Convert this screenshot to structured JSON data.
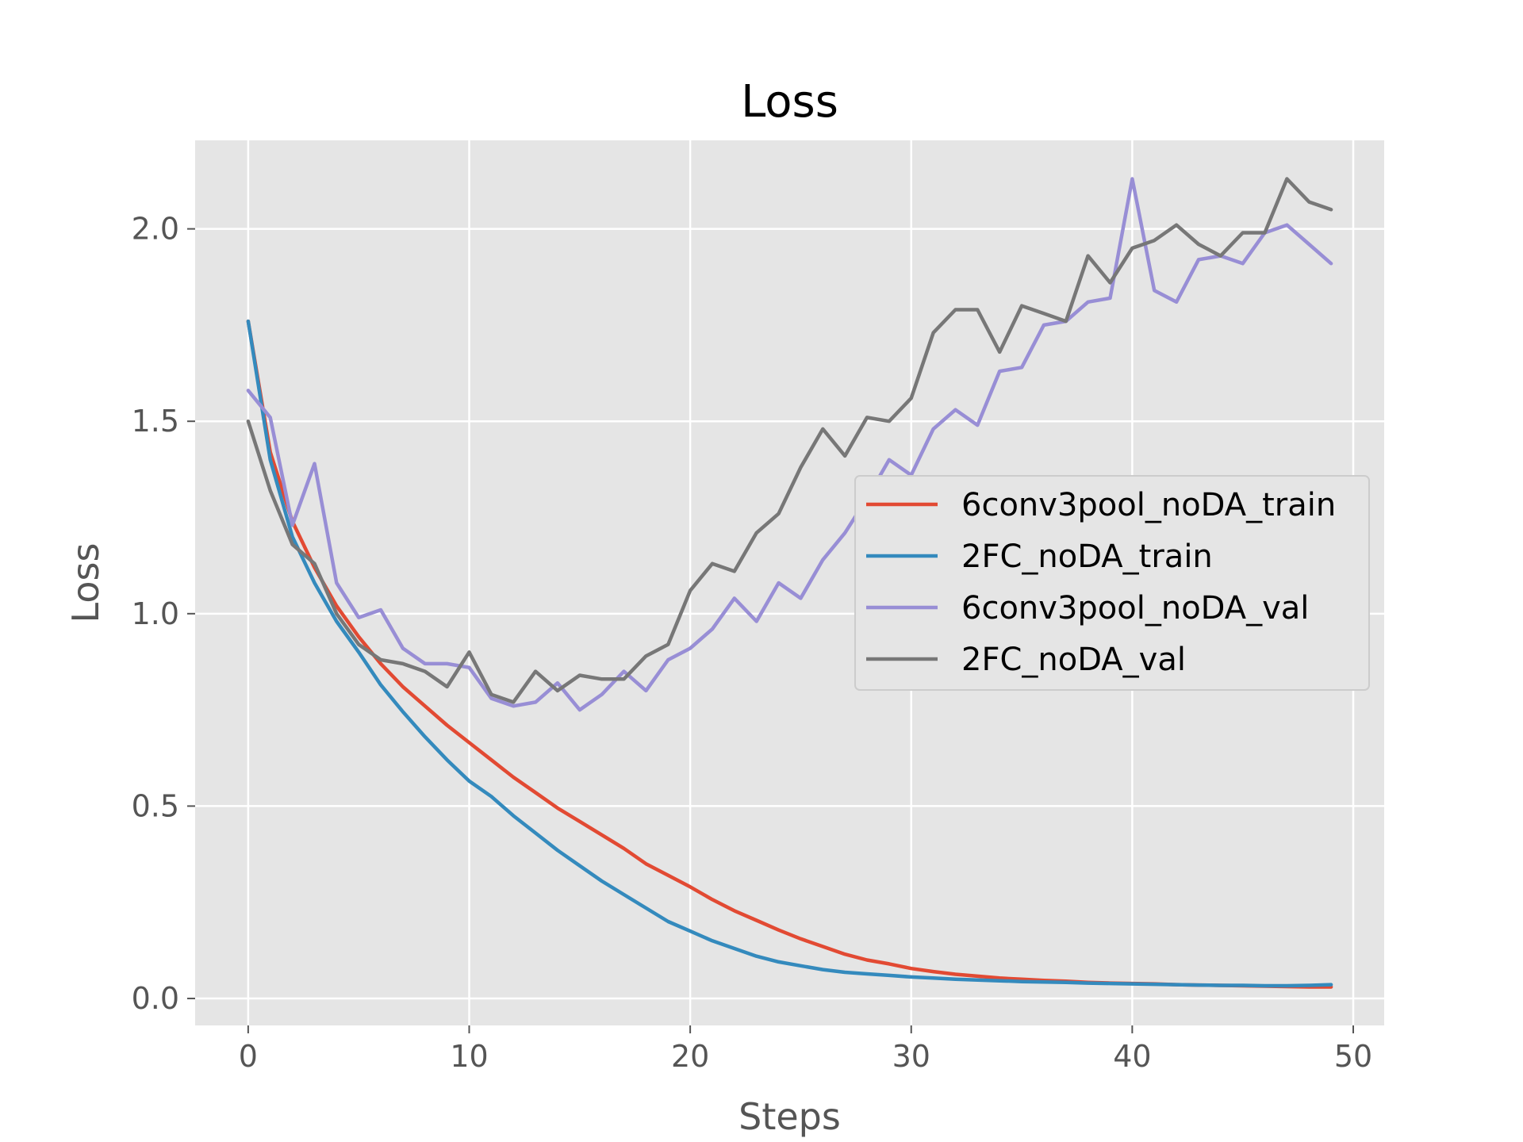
{
  "chart_data": {
    "type": "line",
    "title": "Loss",
    "xlabel": "Steps",
    "ylabel": "Loss",
    "xlim": [
      -2.4,
      51.4
    ],
    "ylim": [
      -0.07,
      2.23
    ],
    "xticks": [
      0,
      10,
      20,
      30,
      40,
      50
    ],
    "yticks": [
      0.0,
      0.5,
      1.0,
      1.5,
      2.0
    ],
    "xtick_labels": [
      "0",
      "10",
      "20",
      "30",
      "40",
      "50"
    ],
    "ytick_labels": [
      "0.0",
      "0.5",
      "1.0",
      "1.5",
      "2.0"
    ],
    "grid": true,
    "legend_position": "center-right",
    "x": [
      0,
      1,
      2,
      3,
      4,
      5,
      6,
      7,
      8,
      9,
      10,
      11,
      12,
      13,
      14,
      15,
      16,
      17,
      18,
      19,
      20,
      21,
      22,
      23,
      24,
      25,
      26,
      27,
      28,
      29,
      30,
      31,
      32,
      33,
      34,
      35,
      36,
      37,
      38,
      39,
      40,
      41,
      42,
      43,
      44,
      45,
      46,
      47,
      48,
      49
    ],
    "series": [
      {
        "name": "6conv3pool_noDA_train",
        "color": "#E24A33",
        "values": [
          1.76,
          1.42,
          1.24,
          1.12,
          1.02,
          0.94,
          0.87,
          0.81,
          0.76,
          0.71,
          0.665,
          0.62,
          0.575,
          0.535,
          0.495,
          0.46,
          0.425,
          0.39,
          0.35,
          0.32,
          0.29,
          0.257,
          0.228,
          0.203,
          0.178,
          0.155,
          0.135,
          0.115,
          0.1,
          0.09,
          0.078,
          0.07,
          0.063,
          0.058,
          0.053,
          0.05,
          0.047,
          0.045,
          0.042,
          0.04,
          0.039,
          0.038,
          0.036,
          0.035,
          0.034,
          0.033,
          0.032,
          0.031,
          0.03,
          0.03
        ]
      },
      {
        "name": "2FC_noDA_train",
        "color": "#348ABD",
        "values": [
          1.76,
          1.4,
          1.2,
          1.08,
          0.98,
          0.9,
          0.815,
          0.745,
          0.68,
          0.62,
          0.565,
          0.525,
          0.475,
          0.43,
          0.385,
          0.345,
          0.305,
          0.27,
          0.235,
          0.2,
          0.175,
          0.15,
          0.13,
          0.11,
          0.095,
          0.085,
          0.075,
          0.068,
          0.064,
          0.06,
          0.056,
          0.053,
          0.05,
          0.048,
          0.046,
          0.044,
          0.043,
          0.042,
          0.04,
          0.039,
          0.038,
          0.037,
          0.036,
          0.035,
          0.034,
          0.034,
          0.033,
          0.033,
          0.034,
          0.036
        ]
      },
      {
        "name": "6conv3pool_noDA_val",
        "color": "#988ED5",
        "values": [
          1.58,
          1.51,
          1.23,
          1.39,
          1.08,
          0.99,
          1.01,
          0.91,
          0.87,
          0.87,
          0.86,
          0.78,
          0.76,
          0.77,
          0.82,
          0.75,
          0.79,
          0.85,
          0.8,
          0.88,
          0.91,
          0.96,
          1.04,
          0.98,
          1.08,
          1.04,
          1.14,
          1.21,
          1.3,
          1.4,
          1.36,
          1.48,
          1.53,
          1.49,
          1.63,
          1.64,
          1.75,
          1.76,
          1.81,
          1.82,
          2.13,
          1.84,
          1.81,
          1.92,
          1.93,
          1.91,
          1.99,
          2.01,
          1.96,
          1.91
        ]
      },
      {
        "name": "2FC_noDA_val",
        "color": "#777777",
        "values": [
          1.5,
          1.32,
          1.18,
          1.13,
          1.0,
          0.92,
          0.88,
          0.87,
          0.85,
          0.81,
          0.9,
          0.79,
          0.77,
          0.85,
          0.8,
          0.84,
          0.83,
          0.83,
          0.89,
          0.92,
          1.06,
          1.13,
          1.11,
          1.21,
          1.26,
          1.38,
          1.48,
          1.41,
          1.51,
          1.5,
          1.56,
          1.73,
          1.79,
          1.79,
          1.68,
          1.8,
          1.78,
          1.76,
          1.93,
          1.86,
          1.95,
          1.97,
          2.01,
          1.96,
          1.93,
          1.99,
          1.99,
          2.13,
          2.07,
          2.05
        ]
      }
    ]
  }
}
